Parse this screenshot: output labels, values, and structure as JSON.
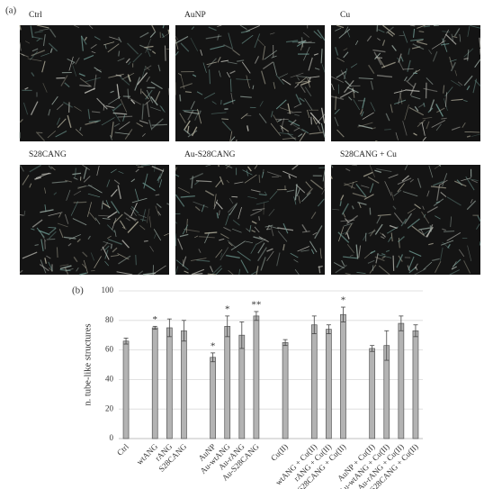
{
  "panel_a": {
    "label": "(a)",
    "images": [
      {
        "label": "Ctrl"
      },
      {
        "label": "AuNP"
      },
      {
        "label": "Cu"
      },
      {
        "label": "S28CANG"
      },
      {
        "label": "Au-S28CANG"
      },
      {
        "label": "S28CANG + Cu"
      }
    ]
  },
  "panel_b_label": "(b)",
  "chart_data": {
    "type": "bar",
    "y_label": "n. tube-like structures",
    "categories": [
      "Ctrl",
      null,
      "wtANG",
      "rANG",
      "S28CANG",
      null,
      "AuNP",
      "Au-wtANG",
      "Au-rANG",
      "Au-S28CANG",
      null,
      "Cu(II)",
      null,
      "wtANG + Cu(II)",
      "rANG + Cu(II)",
      "S28CANG + Cu(II)",
      null,
      "AuNP + Cu(II)",
      "Au-wtANG + Cu(II)",
      "Au-rANG + Cu(II)",
      "Au-S28CANG + Cu(II)"
    ],
    "values": [
      66,
      null,
      75,
      75,
      73,
      null,
      55,
      76,
      70,
      83,
      null,
      65,
      null,
      77,
      74,
      84,
      null,
      61,
      63,
      78,
      73
    ],
    "errors": [
      2,
      null,
      1,
      6,
      7,
      null,
      3,
      7,
      9,
      3,
      null,
      2,
      null,
      6,
      3,
      5,
      null,
      2,
      10,
      5,
      4
    ],
    "significance": [
      null,
      null,
      "*",
      null,
      null,
      null,
      "*",
      "*",
      null,
      "**",
      null,
      null,
      null,
      null,
      null,
      "*",
      null,
      null,
      null,
      null,
      null
    ],
    "color": "#b3b3b3",
    "ylim": [
      0,
      100
    ],
    "yticks": [
      0,
      20,
      40,
      60,
      80,
      100
    ],
    "grid": true
  }
}
